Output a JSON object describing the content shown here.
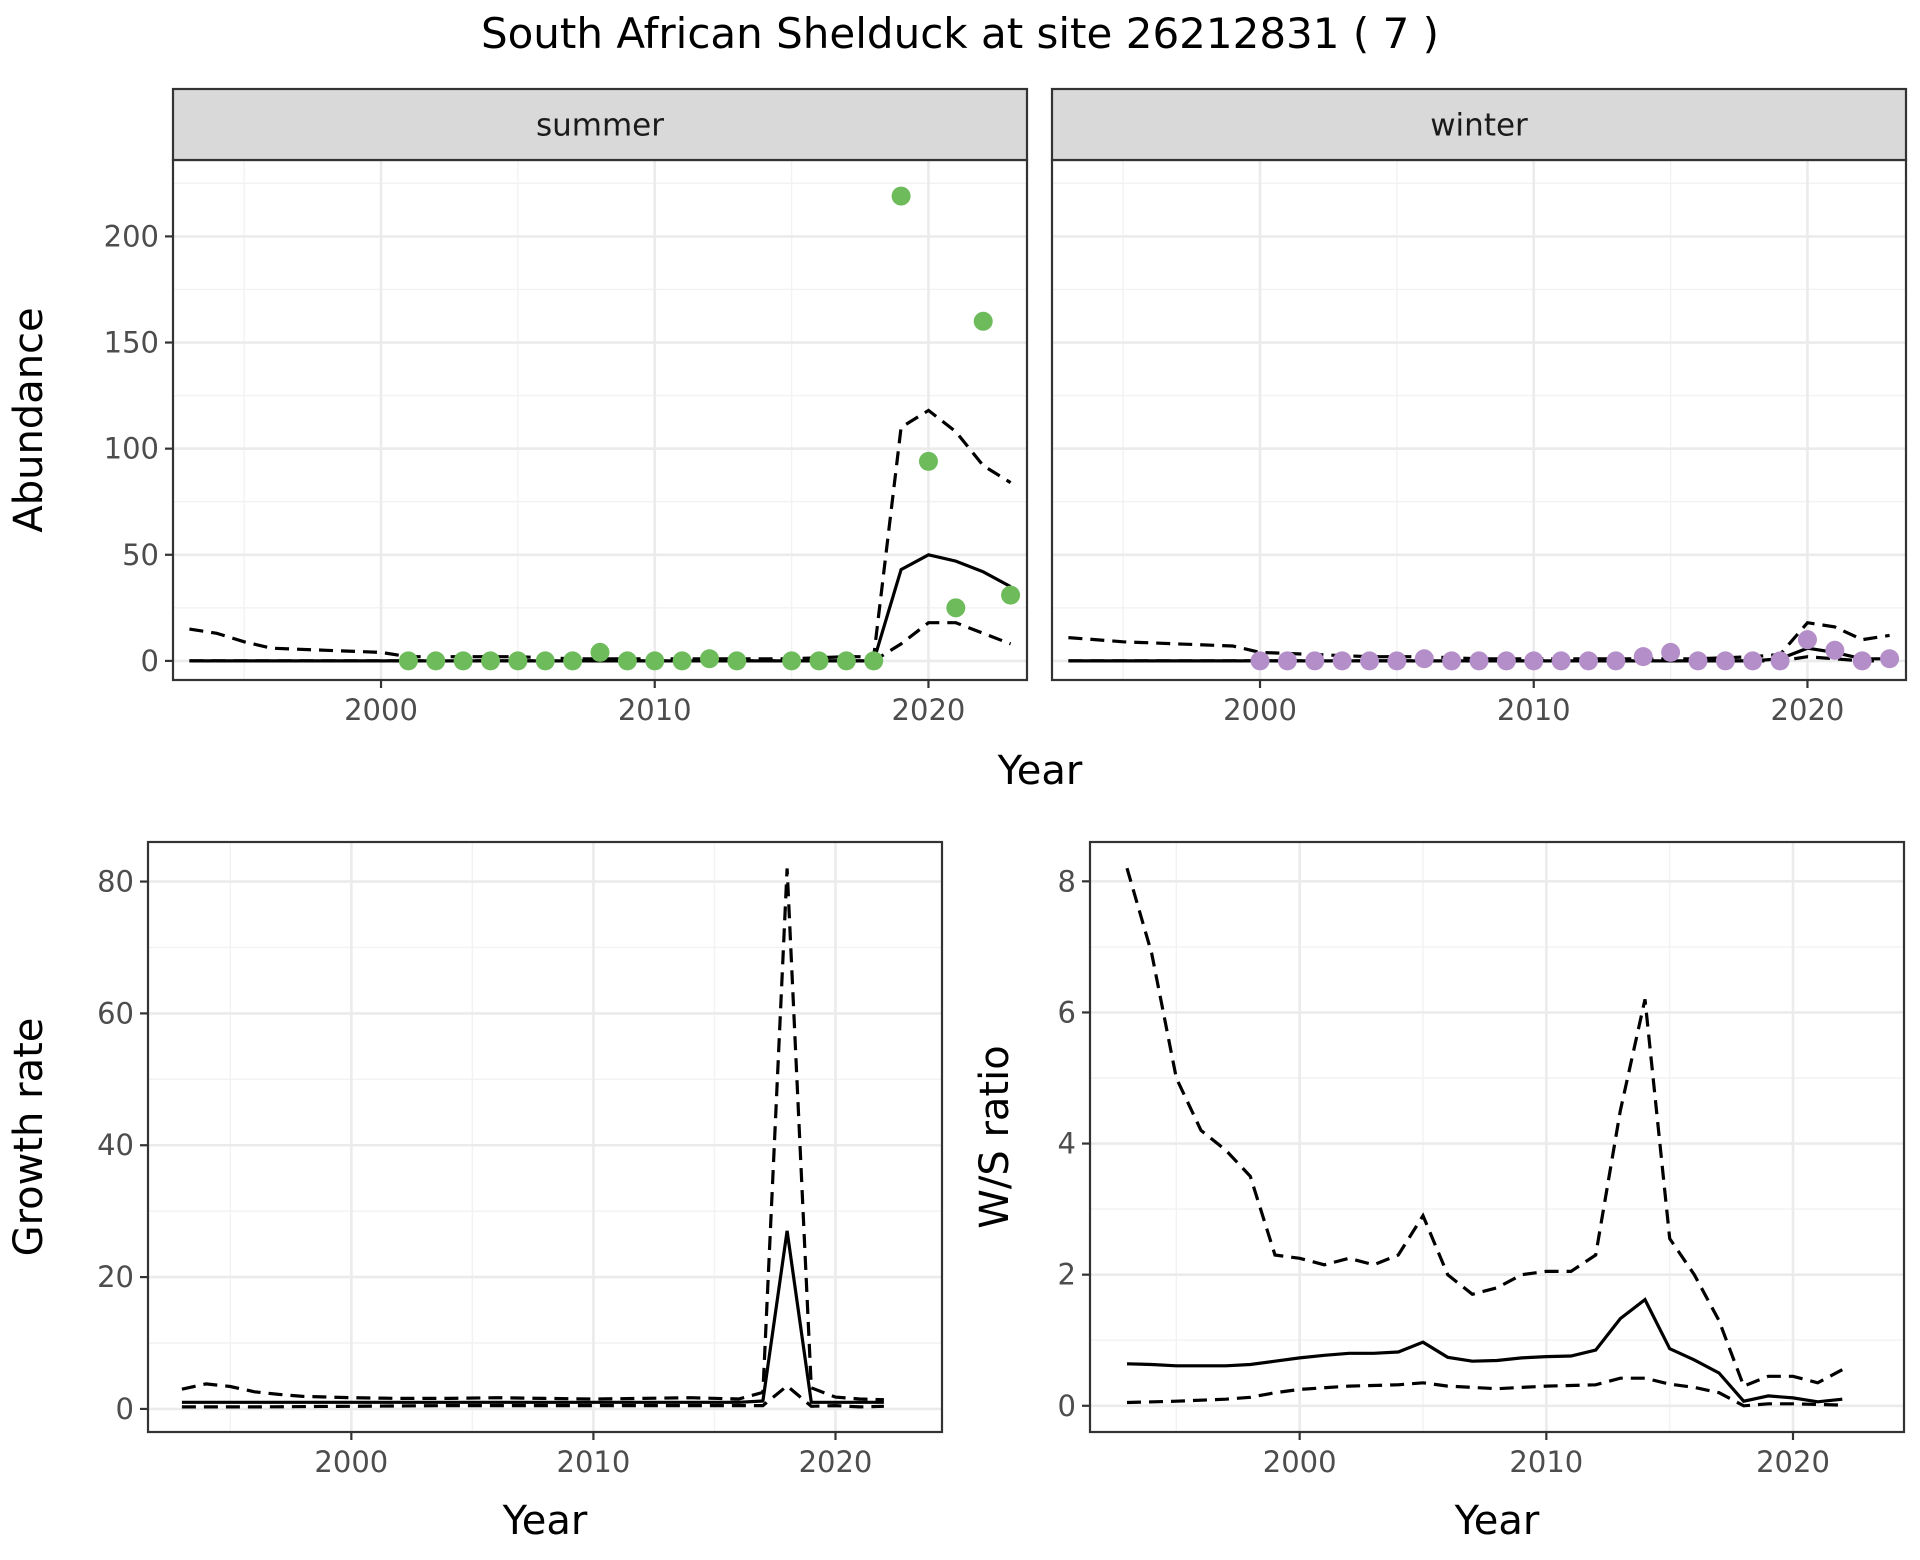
{
  "figure": {
    "title": "South African Shelduck at site 26212831 ( 7 )"
  },
  "chart_data": [
    {
      "type": "scatter",
      "id": "summer",
      "strip": "summer",
      "xlabel": "Year",
      "ylabel": "Abundance",
      "xlim": [
        1992.4,
        2023.6
      ],
      "ylim": [
        -9,
        236
      ],
      "xticks": [
        2000,
        2010,
        2020
      ],
      "yticks": [
        0,
        50,
        100,
        150,
        200
      ],
      "point_color": "#6dbb5a",
      "points": {
        "x": [
          2001,
          2002,
          2003,
          2004,
          2005,
          2006,
          2007,
          2008,
          2009,
          2010,
          2011,
          2012,
          2013,
          2015,
          2016,
          2017,
          2018,
          2019,
          2020,
          2021,
          2022,
          2023
        ],
        "y": [
          0,
          0,
          0,
          0,
          0,
          0,
          0,
          4,
          0,
          0,
          0,
          1,
          0,
          0,
          0,
          0,
          0,
          219,
          94,
          25,
          160,
          31
        ]
      },
      "series": [
        {
          "name": "estimate",
          "style": "solid",
          "x": [
            1993,
            1995,
            1997,
            1999,
            2001,
            2003,
            2005,
            2007,
            2009,
            2011,
            2013,
            2015,
            2017,
            2018,
            2019,
            2020,
            2021,
            2022,
            2023
          ],
          "y": [
            0,
            0,
            0,
            0,
            0,
            0,
            0,
            0,
            0,
            0,
            0,
            0,
            0,
            0,
            43,
            50,
            47,
            42,
            35
          ]
        },
        {
          "name": "upper",
          "style": "dashed",
          "x": [
            1993,
            1994,
            1995,
            1996,
            1998,
            2000,
            2001,
            2003,
            2005,
            2007,
            2009,
            2011,
            2013,
            2015,
            2017,
            2018,
            2019,
            2020,
            2021,
            2022,
            2023
          ],
          "y": [
            15,
            13,
            9,
            6,
            5,
            4,
            2,
            2,
            2,
            1,
            1,
            1,
            1,
            1,
            2,
            2,
            110,
            118,
            108,
            92,
            84
          ]
        },
        {
          "name": "lower",
          "style": "dashed",
          "x": [
            1993,
            1996,
            2000,
            2004,
            2008,
            2012,
            2016,
            2018,
            2019,
            2020,
            2021,
            2022,
            2023
          ],
          "y": [
            0,
            0,
            0,
            0,
            0,
            0,
            0,
            0,
            8,
            18,
            18,
            13,
            8
          ]
        }
      ]
    },
    {
      "type": "scatter",
      "id": "winter",
      "strip": "winter",
      "xlabel": "Year",
      "ylabel": "",
      "xlim": [
        1992.4,
        2023.6
      ],
      "ylim": [
        -9,
        236
      ],
      "xticks": [
        2000,
        2010,
        2020
      ],
      "yticks": [
        0,
        50,
        100,
        150,
        200
      ],
      "point_color": "#b48ec8",
      "points": {
        "x": [
          2000,
          2001,
          2002,
          2003,
          2004,
          2005,
          2006,
          2007,
          2008,
          2009,
          2010,
          2011,
          2012,
          2013,
          2014,
          2015,
          2016,
          2017,
          2018,
          2019,
          2020,
          2021,
          2022,
          2023
        ],
        "y": [
          0,
          0,
          0,
          0,
          0,
          0,
          1,
          0,
          0,
          0,
          0,
          0,
          0,
          0,
          2,
          4,
          0,
          0,
          0,
          0,
          10,
          5,
          0,
          1
        ]
      },
      "series": [
        {
          "name": "estimate",
          "style": "solid",
          "x": [
            1993,
            1996,
            2000,
            2004,
            2008,
            2012,
            2016,
            2018,
            2019,
            2020,
            2021,
            2022,
            2023
          ],
          "y": [
            0,
            0,
            0,
            0,
            0,
            0,
            0,
            0,
            1,
            6,
            4,
            1,
            1
          ]
        },
        {
          "name": "upper",
          "style": "dashed",
          "x": [
            1993,
            1995,
            1997,
            1999,
            2000,
            2002,
            2004,
            2006,
            2008,
            2010,
            2012,
            2014,
            2016,
            2018,
            2019,
            2020,
            2021,
            2022,
            2023
          ],
          "y": [
            11,
            9,
            8,
            7,
            4,
            3,
            2,
            2,
            1,
            1,
            1,
            1,
            1,
            2,
            3,
            18,
            16,
            10,
            12
          ]
        },
        {
          "name": "lower",
          "style": "dashed",
          "x": [
            1993,
            2000,
            2010,
            2018,
            2019,
            2020,
            2021,
            2022,
            2023
          ],
          "y": [
            0,
            0,
            0,
            0,
            0,
            2,
            1,
            0,
            0
          ]
        }
      ]
    },
    {
      "type": "line",
      "id": "growth",
      "xlabel": "Year",
      "ylabel": "Growth rate",
      "xlim": [
        1991.6,
        2024.4
      ],
      "ylim": [
        -3.5,
        86
      ],
      "xticks": [
        2000,
        2010,
        2020
      ],
      "yticks": [
        0,
        20,
        40,
        60,
        80
      ],
      "series": [
        {
          "name": "estimate",
          "style": "solid",
          "x": [
            1993,
            1995,
            2000,
            2005,
            2010,
            2015,
            2016,
            2017,
            2018,
            2019,
            2020,
            2021,
            2022
          ],
          "y": [
            1,
            1,
            1,
            1,
            1,
            1,
            1,
            1.2,
            27,
            1,
            1,
            1,
            1
          ]
        },
        {
          "name": "upper",
          "style": "dashed",
          "x": [
            1993,
            1994,
            1995,
            1996,
            1997,
            1998,
            2000,
            2002,
            2004,
            2006,
            2008,
            2010,
            2012,
            2014,
            2016,
            2017,
            2018,
            2019,
            2020,
            2021,
            2022
          ],
          "y": [
            3,
            3.8,
            3.4,
            2.6,
            2.2,
            1.9,
            1.7,
            1.6,
            1.6,
            1.7,
            1.6,
            1.5,
            1.6,
            1.7,
            1.5,
            2.5,
            82,
            3.2,
            1.8,
            1.5,
            1.4
          ]
        },
        {
          "name": "lower",
          "style": "dashed",
          "x": [
            1993,
            1996,
            2000,
            2004,
            2008,
            2012,
            2016,
            2017,
            2018,
            2019,
            2020,
            2021,
            2022
          ],
          "y": [
            0.3,
            0.3,
            0.4,
            0.5,
            0.5,
            0.5,
            0.5,
            0.5,
            3.5,
            0.4,
            0.5,
            0.3,
            0.4
          ]
        }
      ]
    },
    {
      "type": "line",
      "id": "ratio",
      "xlabel": "Year",
      "ylabel": "W/S ratio",
      "xlim": [
        1991.5,
        2024.5
      ],
      "ylim": [
        -0.4,
        8.6
      ],
      "xticks": [
        2000,
        2010,
        2020
      ],
      "yticks": [
        0,
        2,
        4,
        6,
        8
      ],
      "series": [
        {
          "name": "estimate",
          "style": "solid",
          "x": [
            1993,
            1994,
            1995,
            1996,
            1997,
            1998,
            1999,
            2000,
            2001,
            2002,
            2003,
            2004,
            2005,
            2006,
            2007,
            2008,
            2009,
            2010,
            2011,
            2012,
            2013,
            2014,
            2015,
            2016,
            2017,
            2018,
            2019,
            2020,
            2021,
            2022
          ],
          "y": [
            0.64,
            0.63,
            0.61,
            0.61,
            0.61,
            0.63,
            0.68,
            0.73,
            0.77,
            0.8,
            0.8,
            0.82,
            0.97,
            0.74,
            0.68,
            0.69,
            0.73,
            0.75,
            0.76,
            0.85,
            1.33,
            1.62,
            0.87,
            0.7,
            0.5,
            0.07,
            0.15,
            0.12,
            0.06,
            0.1
          ]
        },
        {
          "name": "upper",
          "style": "dashed",
          "x": [
            1993,
            1994,
            1995,
            1996,
            1997,
            1998,
            1999,
            2000,
            2001,
            2002,
            2003,
            2004,
            2005,
            2006,
            2007,
            2008,
            2009,
            2010,
            2011,
            2012,
            2013,
            2014,
            2015,
            2016,
            2017,
            2018,
            2019,
            2020,
            2021,
            2022
          ],
          "y": [
            8.2,
            6.9,
            5.0,
            4.2,
            3.9,
            3.5,
            2.3,
            2.25,
            2.15,
            2.25,
            2.15,
            2.3,
            2.9,
            2.0,
            1.7,
            1.8,
            2.0,
            2.05,
            2.05,
            2.3,
            4.5,
            6.2,
            2.55,
            2.0,
            1.3,
            0.3,
            0.45,
            0.45,
            0.35,
            0.55
          ]
        },
        {
          "name": "lower",
          "style": "dashed",
          "x": [
            1993,
            1995,
            1997,
            1998,
            1999,
            2000,
            2002,
            2004,
            2005,
            2006,
            2008,
            2010,
            2012,
            2013,
            2014,
            2015,
            2016,
            2017,
            2018,
            2019,
            2020,
            2021,
            2022
          ],
          "y": [
            0.05,
            0.07,
            0.1,
            0.13,
            0.2,
            0.25,
            0.3,
            0.32,
            0.35,
            0.3,
            0.26,
            0.3,
            0.32,
            0.42,
            0.42,
            0.33,
            0.28,
            0.2,
            0.0,
            0.03,
            0.03,
            0.02,
            0.01
          ]
        }
      ]
    }
  ]
}
